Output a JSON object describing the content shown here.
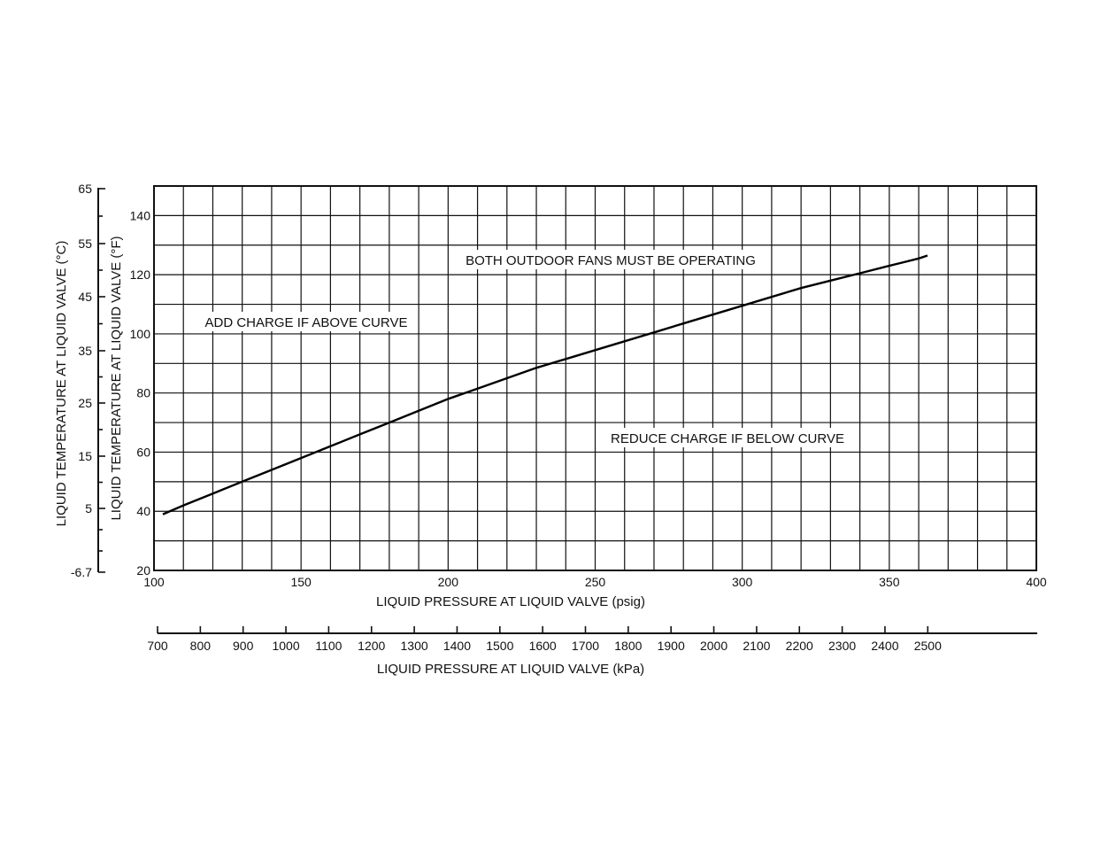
{
  "chart_data": {
    "type": "line",
    "x_axis": {
      "label": "LIQUID PRESSURE AT LIQUID VALVE (psig)",
      "range": [
        100,
        400
      ],
      "ticks": [
        100,
        150,
        200,
        250,
        300,
        350,
        400
      ],
      "grid_step": 10
    },
    "x_axis_secondary": {
      "label": "LIQUID PRESSURE AT LIQUID VALVE (kPa)",
      "ticks": [
        700,
        800,
        900,
        1000,
        1100,
        1200,
        1300,
        1400,
        1500,
        1600,
        1700,
        1800,
        1900,
        2000,
        2100,
        2200,
        2300,
        2400,
        2500
      ]
    },
    "y_axis": {
      "label": "LIQUID TEMPERATURE AT LIQUID VALVE (°F)",
      "range": [
        20,
        150
      ],
      "ticks": [
        20,
        40,
        60,
        80,
        100,
        120,
        140
      ],
      "grid_step": 10
    },
    "y_axis_secondary": {
      "label": "LIQUID TEMPERATURE AT LIQUID VALVE (°C)",
      "ticks": [
        "65",
        "55",
        "45",
        "35",
        "25",
        "15",
        "5",
        "-6.7"
      ]
    },
    "grid": true,
    "annotations": [
      "BOTH OUTDOOR FANS MUST BE OPERATING",
      "ADD CHARGE IF ABOVE CURVE",
      "REDUCE CHARGE IF BELOW CURVE"
    ],
    "series": [
      {
        "x": [
          103,
          110,
          120,
          130,
          140,
          150,
          160,
          170,
          180,
          190,
          200,
          210,
          220,
          230,
          240,
          250,
          260,
          270,
          280,
          290,
          300,
          310,
          320,
          330,
          340,
          350,
          360,
          363
        ],
        "values": [
          39,
          42,
          46,
          50,
          54,
          58,
          62,
          66,
          70,
          74,
          78,
          81.5,
          85,
          88.5,
          91.5,
          94.5,
          97.5,
          100.5,
          103.5,
          106.5,
          109.5,
          112.5,
          115.5,
          118,
          120.5,
          123,
          125.5,
          126.5
        ]
      }
    ]
  }
}
